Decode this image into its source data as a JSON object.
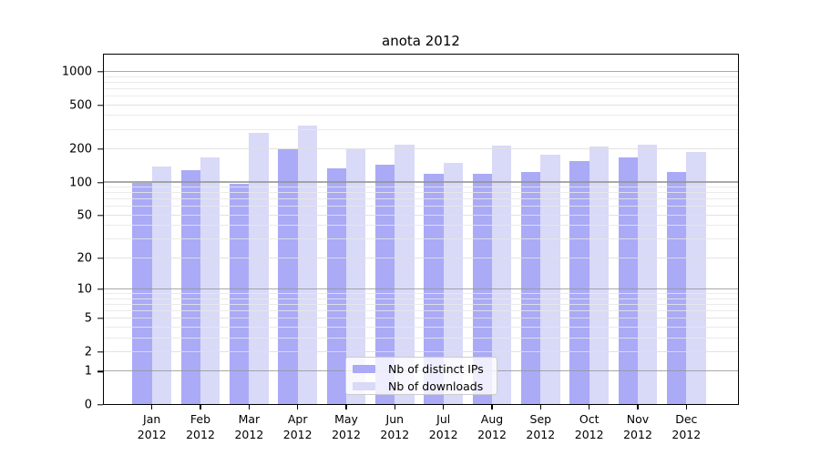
{
  "chart_data": {
    "type": "bar",
    "title": "anota 2012",
    "months": [
      "Jan",
      "Feb",
      "Mar",
      "Apr",
      "May",
      "Jun",
      "Jul",
      "Aug",
      "Sep",
      "Oct",
      "Nov",
      "Dec"
    ],
    "year_label": "2012",
    "series": [
      {
        "name": "Nb of distinct IPs",
        "color": "#aaaaf7",
        "values": [
          100,
          130,
          97,
          200,
          135,
          145,
          120,
          120,
          125,
          155,
          170,
          125
        ]
      },
      {
        "name": "Nb of downloads",
        "color": "#d9d9f8",
        "values": [
          140,
          170,
          280,
          330,
          200,
          220,
          150,
          215,
          180,
          210,
          220,
          190
        ]
      }
    ],
    "y_axis": {
      "scale": "log1p",
      "major_ticks": [
        0,
        1,
        2,
        5,
        10,
        20,
        50,
        100,
        200,
        500,
        1000
      ],
      "decade_gridlines": [
        1,
        10,
        100,
        1000
      ],
      "minor_gridlines": [
        3,
        4,
        6,
        7,
        8,
        9,
        30,
        40,
        60,
        70,
        80,
        90,
        300,
        400,
        600,
        700,
        800,
        900
      ]
    },
    "legend": {
      "position": "lower-center",
      "background": "#ffffff",
      "border_color": "#cccccc"
    },
    "grid": true,
    "bar_colors": {
      "distinct_ips": "#aaaaf7",
      "downloads": "#d9d9f8"
    }
  }
}
